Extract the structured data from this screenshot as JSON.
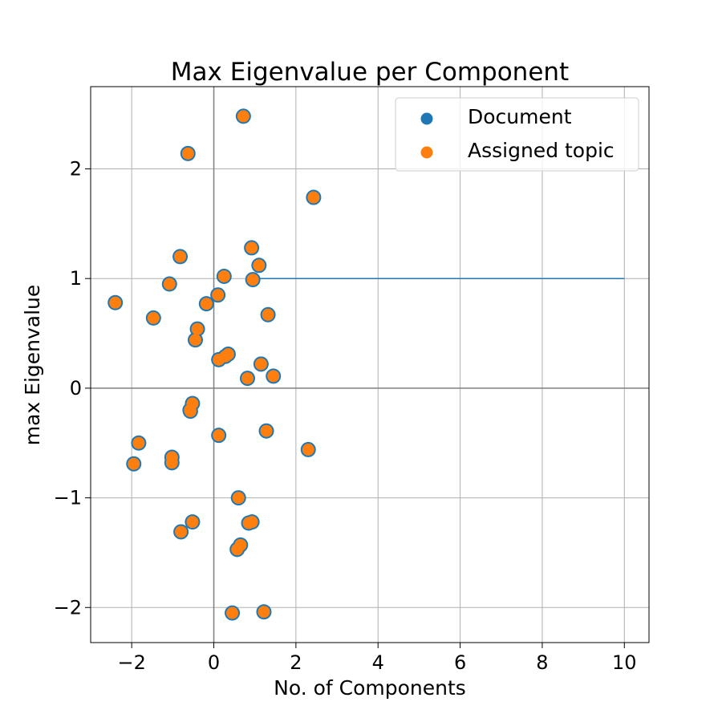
{
  "chart_data": {
    "type": "scatter",
    "title": "Max Eigenvalue per Component",
    "xlabel": "No. of Components",
    "ylabel": "max Eigenvalue",
    "xlim": [
      -3.0,
      10.6
    ],
    "ylim": [
      -2.32,
      2.75
    ],
    "xticks": [
      -2,
      0,
      2,
      4,
      6,
      8,
      10
    ],
    "xtick_labels": [
      "−2",
      "0",
      "2",
      "4",
      "6",
      "8",
      "10"
    ],
    "yticks": [
      -2,
      -1,
      0,
      1,
      2
    ],
    "ytick_labels": [
      "−2",
      "−1",
      "0",
      "1",
      "2"
    ],
    "grid": true,
    "legend_position": "top-right",
    "reference_lines": [
      {
        "orientation": "horizontal",
        "y": 0,
        "color": "#808080"
      },
      {
        "orientation": "vertical",
        "x": 0,
        "color": "#808080"
      }
    ],
    "segment": {
      "x": [
        1,
        10
      ],
      "y": [
        1,
        1
      ],
      "color": "#1f77b4"
    },
    "series": [
      {
        "name": "Document",
        "color": "#1f77b4",
        "points": [
          [
            0.72,
            2.48
          ],
          [
            -0.63,
            2.14
          ],
          [
            2.43,
            1.74
          ],
          [
            0.92,
            1.28
          ],
          [
            -0.82,
            1.2
          ],
          [
            1.1,
            1.12
          ],
          [
            0.25,
            1.02
          ],
          [
            0.95,
            0.99
          ],
          [
            -1.08,
            0.95
          ],
          [
            0.1,
            0.85
          ],
          [
            -2.4,
            0.78
          ],
          [
            -0.18,
            0.77
          ],
          [
            1.32,
            0.67
          ],
          [
            -1.47,
            0.64
          ],
          [
            -0.4,
            0.54
          ],
          [
            -0.45,
            0.44
          ],
          [
            0.35,
            0.31
          ],
          [
            0.28,
            0.29
          ],
          [
            0.12,
            0.26
          ],
          [
            1.15,
            0.22
          ],
          [
            1.45,
            0.11
          ],
          [
            0.82,
            0.09
          ],
          [
            -0.52,
            -0.14
          ],
          [
            -0.58,
            -0.2
          ],
          [
            -0.57,
            -0.21
          ],
          [
            0.12,
            -0.43
          ],
          [
            1.28,
            -0.39
          ],
          [
            2.3,
            -0.56
          ],
          [
            -1.83,
            -0.5
          ],
          [
            -1.02,
            -0.63
          ],
          [
            -1.02,
            -0.68
          ],
          [
            -1.95,
            -0.69
          ],
          [
            0.6,
            -1.0
          ],
          [
            0.85,
            -1.23
          ],
          [
            0.93,
            -1.22
          ],
          [
            -0.52,
            -1.22
          ],
          [
            -0.8,
            -1.31
          ],
          [
            0.65,
            -1.43
          ],
          [
            0.57,
            -1.47
          ],
          [
            0.45,
            -2.05
          ],
          [
            1.22,
            -2.04
          ]
        ]
      },
      {
        "name": "Assigned topic",
        "color": "#ff7f0e",
        "points": [
          [
            0.72,
            2.48
          ],
          [
            -0.63,
            2.14
          ],
          [
            2.43,
            1.74
          ],
          [
            0.92,
            1.28
          ],
          [
            -0.82,
            1.2
          ],
          [
            1.1,
            1.12
          ],
          [
            0.25,
            1.02
          ],
          [
            0.95,
            0.99
          ],
          [
            -1.08,
            0.95
          ],
          [
            0.1,
            0.85
          ],
          [
            -2.4,
            0.78
          ],
          [
            -0.18,
            0.77
          ],
          [
            1.32,
            0.67
          ],
          [
            -1.47,
            0.64
          ],
          [
            -0.4,
            0.54
          ],
          [
            -0.45,
            0.44
          ],
          [
            0.35,
            0.31
          ],
          [
            0.28,
            0.29
          ],
          [
            0.12,
            0.26
          ],
          [
            1.15,
            0.22
          ],
          [
            1.45,
            0.11
          ],
          [
            0.82,
            0.09
          ],
          [
            -0.52,
            -0.14
          ],
          [
            -0.58,
            -0.2
          ],
          [
            -0.57,
            -0.21
          ],
          [
            0.12,
            -0.43
          ],
          [
            1.28,
            -0.39
          ],
          [
            2.3,
            -0.56
          ],
          [
            -1.83,
            -0.5
          ],
          [
            -1.02,
            -0.63
          ],
          [
            -1.02,
            -0.68
          ],
          [
            -1.95,
            -0.69
          ],
          [
            0.6,
            -1.0
          ],
          [
            0.85,
            -1.23
          ],
          [
            0.93,
            -1.22
          ],
          [
            -0.52,
            -1.22
          ],
          [
            -0.8,
            -1.31
          ],
          [
            0.65,
            -1.43
          ],
          [
            0.57,
            -1.47
          ],
          [
            0.45,
            -2.05
          ],
          [
            1.22,
            -2.04
          ]
        ]
      }
    ]
  }
}
